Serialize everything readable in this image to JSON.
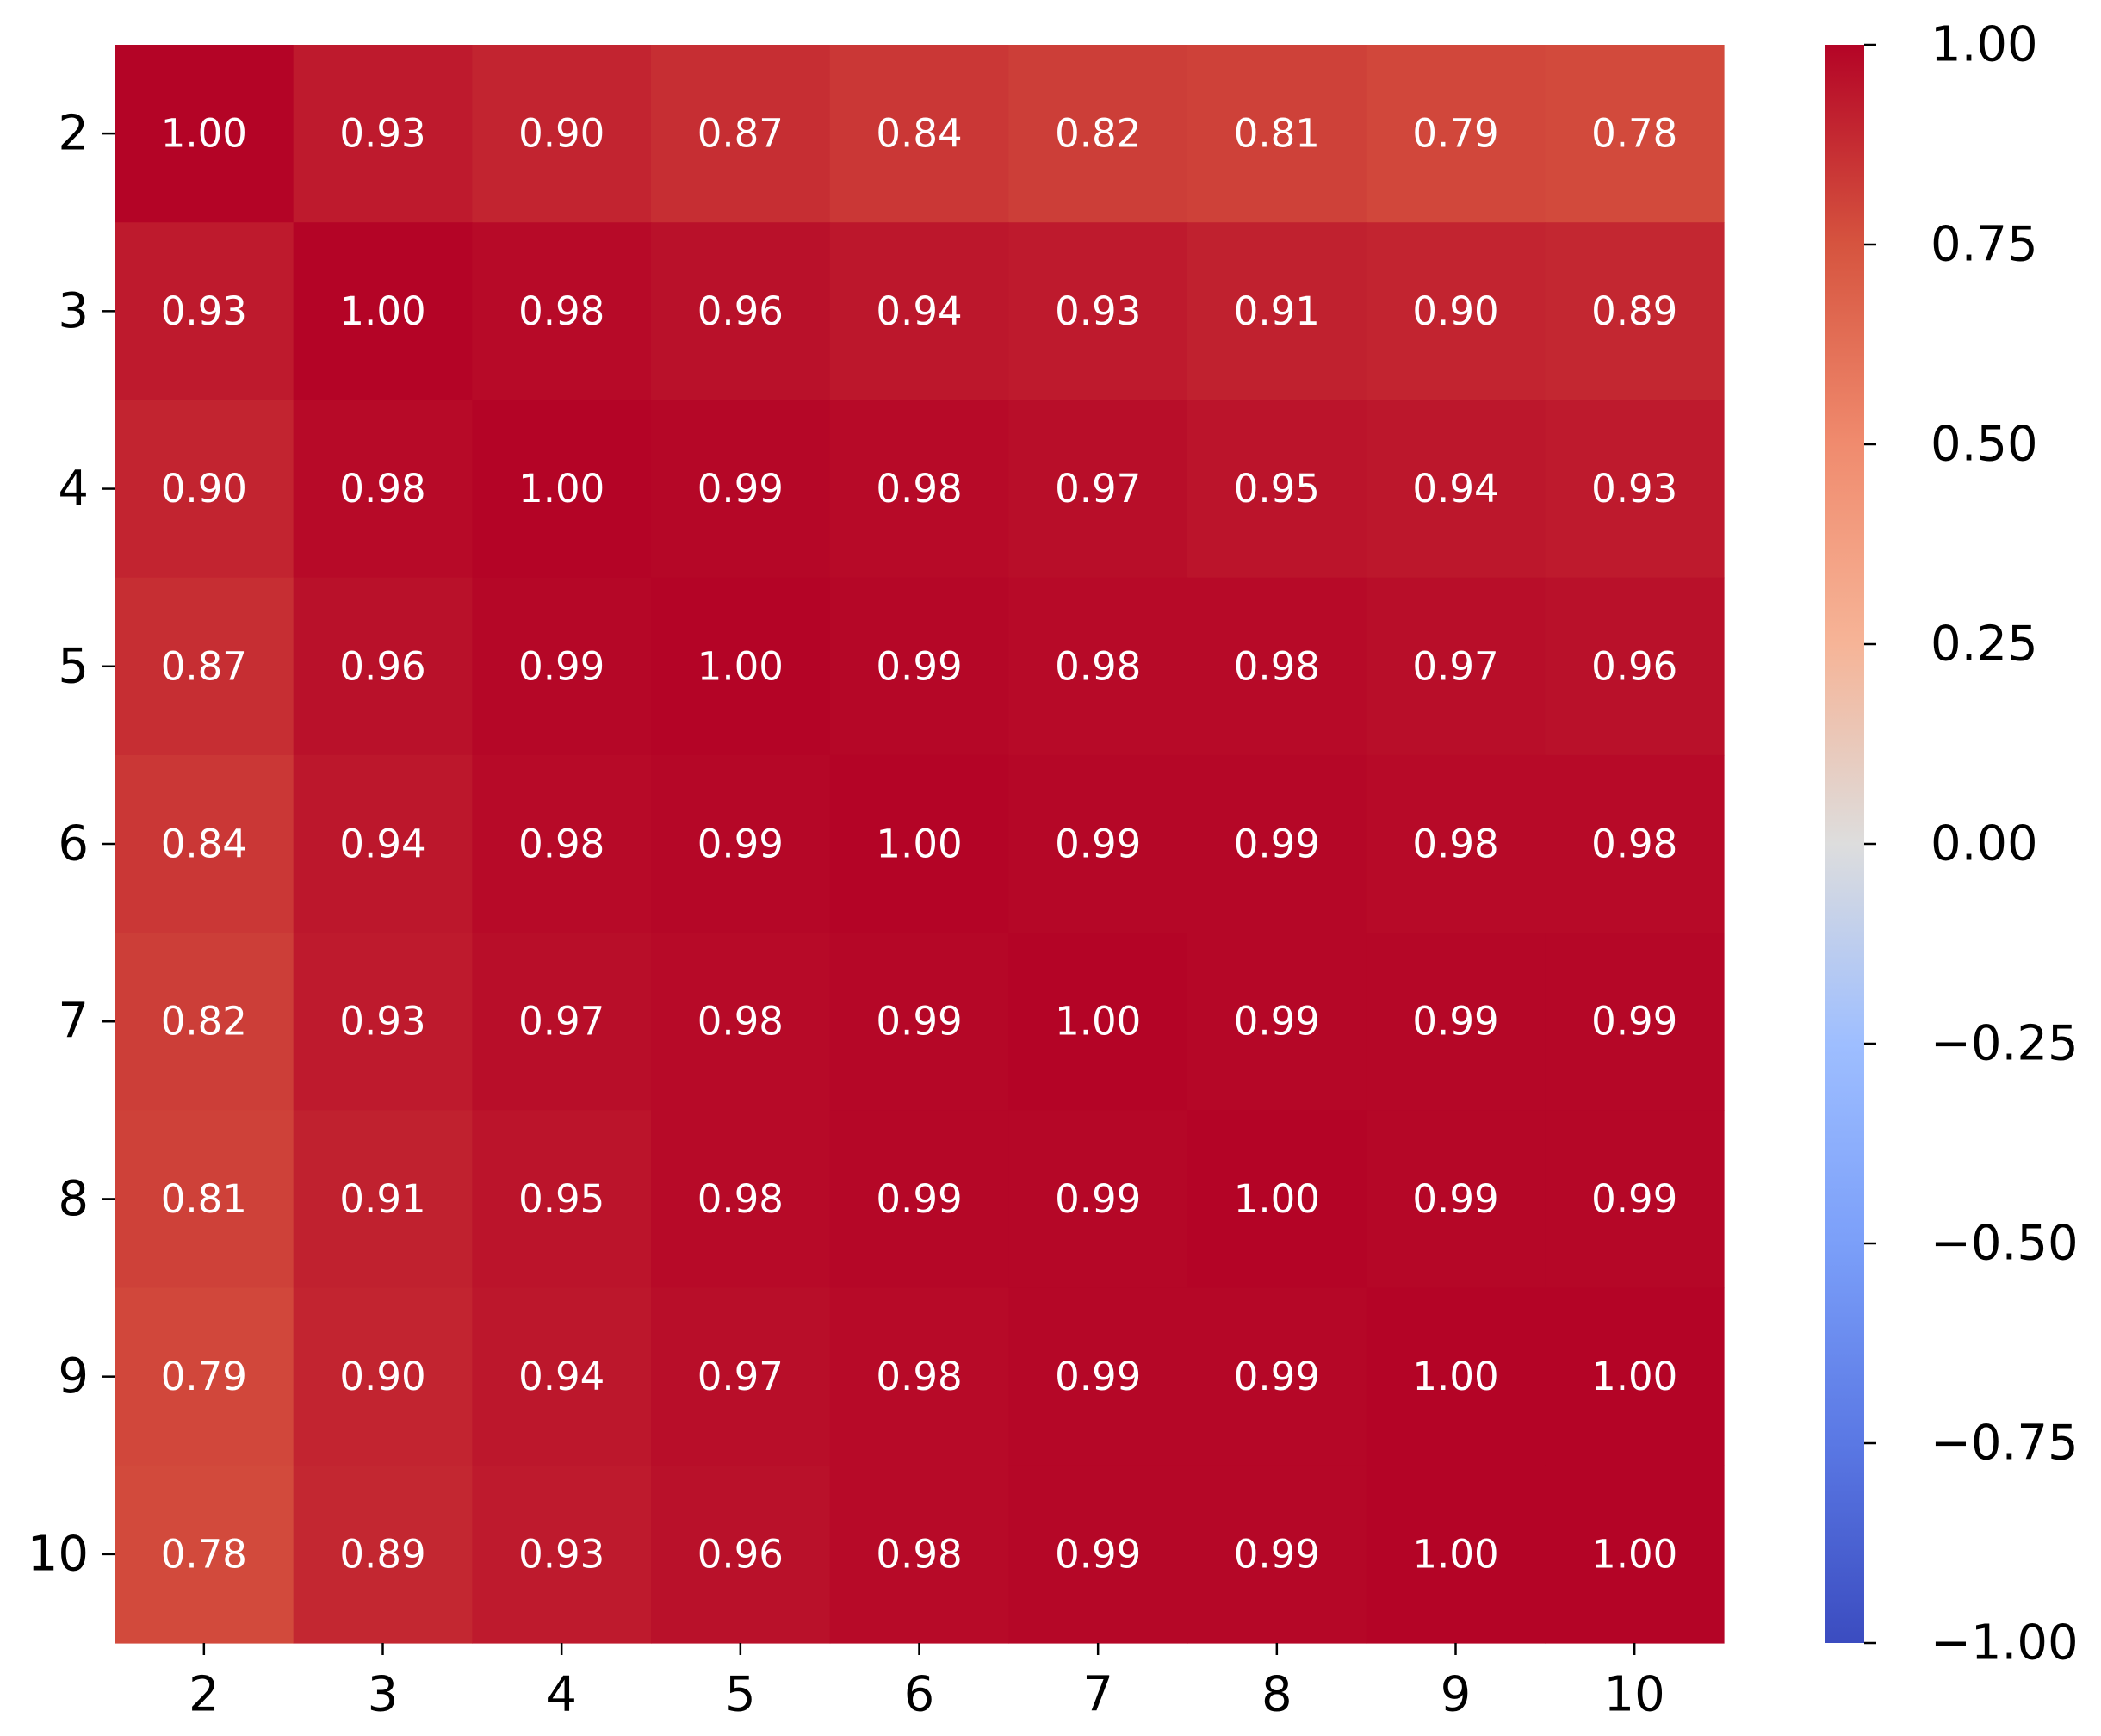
{
  "colors": {
    "colormap": "coolwarm",
    "cell_text": "#ffffff",
    "tick_text": "#000000",
    "colorbar_stops": [
      [
        0.0,
        "#3b4cc0"
      ],
      [
        0.125,
        "#5a78e4"
      ],
      [
        0.25,
        "#7b9ff9"
      ],
      [
        0.375,
        "#9ebeff"
      ],
      [
        0.5,
        "#dddddd"
      ],
      [
        0.625,
        "#f6b497"
      ],
      [
        0.75,
        "#f08b6e"
      ],
      [
        0.875,
        "#d6543f"
      ],
      [
        1.0,
        "#b40426"
      ]
    ]
  },
  "chart_data": {
    "type": "heatmap",
    "title": "",
    "xlabel": "",
    "ylabel": "",
    "x_categories": [
      "2",
      "3",
      "4",
      "5",
      "6",
      "7",
      "8",
      "9",
      "10"
    ],
    "y_categories": [
      "2",
      "3",
      "4",
      "5",
      "6",
      "7",
      "8",
      "9",
      "10"
    ],
    "values": [
      [
        1.0,
        0.93,
        0.9,
        0.87,
        0.84,
        0.82,
        0.81,
        0.79,
        0.78
      ],
      [
        0.93,
        1.0,
        0.98,
        0.96,
        0.94,
        0.93,
        0.91,
        0.9,
        0.89
      ],
      [
        0.9,
        0.98,
        1.0,
        0.99,
        0.98,
        0.97,
        0.95,
        0.94,
        0.93
      ],
      [
        0.87,
        0.96,
        0.99,
        1.0,
        0.99,
        0.98,
        0.98,
        0.97,
        0.96
      ],
      [
        0.84,
        0.94,
        0.98,
        0.99,
        1.0,
        0.99,
        0.99,
        0.98,
        0.98
      ],
      [
        0.82,
        0.93,
        0.97,
        0.98,
        0.99,
        1.0,
        0.99,
        0.99,
        0.99
      ],
      [
        0.81,
        0.91,
        0.95,
        0.98,
        0.99,
        0.99,
        1.0,
        0.99,
        0.99
      ],
      [
        0.79,
        0.9,
        0.94,
        0.97,
        0.98,
        0.99,
        0.99,
        1.0,
        1.0
      ],
      [
        0.78,
        0.89,
        0.93,
        0.96,
        0.98,
        0.99,
        0.99,
        1.0,
        1.0
      ]
    ],
    "cell_labels": [
      [
        "1.00",
        "0.93",
        "0.90",
        "0.87",
        "0.84",
        "0.82",
        "0.81",
        "0.79",
        "0.78"
      ],
      [
        "0.93",
        "1.00",
        "0.98",
        "0.96",
        "0.94",
        "0.93",
        "0.91",
        "0.90",
        "0.89"
      ],
      [
        "0.90",
        "0.98",
        "1.00",
        "0.99",
        "0.98",
        "0.97",
        "0.95",
        "0.94",
        "0.93"
      ],
      [
        "0.87",
        "0.96",
        "0.99",
        "1.00",
        "0.99",
        "0.98",
        "0.98",
        "0.97",
        "0.96"
      ],
      [
        "0.84",
        "0.94",
        "0.98",
        "0.99",
        "1.00",
        "0.99",
        "0.99",
        "0.98",
        "0.98"
      ],
      [
        "0.82",
        "0.93",
        "0.97",
        "0.98",
        "0.99",
        "1.00",
        "0.99",
        "0.99",
        "0.99"
      ],
      [
        "0.81",
        "0.91",
        "0.95",
        "0.98",
        "0.99",
        "0.99",
        "1.00",
        "0.99",
        "0.99"
      ],
      [
        "0.79",
        "0.90",
        "0.94",
        "0.97",
        "0.98",
        "0.99",
        "0.99",
        "1.00",
        "1.00"
      ],
      [
        "0.78",
        "0.89",
        "0.93",
        "0.96",
        "0.98",
        "0.99",
        "0.99",
        "1.00",
        "1.00"
      ]
    ],
    "colorbar": {
      "vmin": -1.0,
      "vmax": 1.0,
      "ticks": [
        1.0,
        0.75,
        0.5,
        0.25,
        0.0,
        -0.25,
        -0.5,
        -0.75,
        -1.0
      ],
      "tick_labels": [
        "1.00",
        "0.75",
        "0.50",
        "0.25",
        "0.00",
        "−0.25",
        "−0.50",
        "−0.75",
        "−1.00"
      ]
    },
    "grid": false,
    "legend": "colorbar-right"
  }
}
